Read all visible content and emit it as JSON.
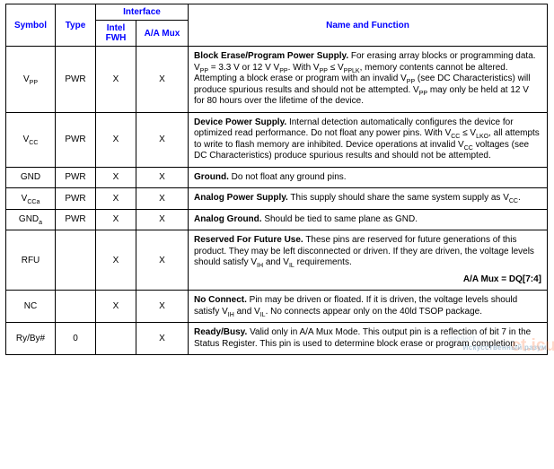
{
  "headers": {
    "symbol": "Symbol",
    "type": "Type",
    "interface": "Interface",
    "intel_fwh": "Intel FWH",
    "aa_mux": "A/A Mux",
    "name_func": "Name and Function"
  },
  "rows": [
    {
      "symbol_html": "V<sub>PP</sub>",
      "type": "PWR",
      "intel_fwh": "X",
      "aa_mux": "X",
      "desc_html": "<b>Block Erase/Program Power Supply.</b> For erasing array blocks or programming data. V<sub>PP</sub> = 3.3 V or 12 V V<sub>PP</sub>. With V<sub>PP</sub> ≤ V<sub>PPLK</sub>, memory contents cannot be altered. Attempting a block erase or program with an invalid V<sub>PP</sub> (see DC Characteristics) will produce spurious results and should not be attempted. V<sub>PP</sub> may only be held at 12 V for 80 hours over the lifetime of the device.",
      "extra_html": ""
    },
    {
      "symbol_html": "V<sub>CC</sub>",
      "type": "PWR",
      "intel_fwh": "X",
      "aa_mux": "X",
      "desc_html": "<b>Device Power Supply.</b> Internal detection automatically configures the device for optimized read performance. Do not float any power pins. With V<sub>CC</sub> ≤ V<sub>LKO</sub>, all attempts to write to flash memory are inhibited. Device operations at invalid V<sub>CC</sub> voltages (see DC Characteristics) produce spurious results and should not be attempted.",
      "extra_html": ""
    },
    {
      "symbol_html": "GND",
      "type": "PWR",
      "intel_fwh": "X",
      "aa_mux": "X",
      "desc_html": "<b>Ground.</b> Do not float any ground pins.",
      "extra_html": ""
    },
    {
      "symbol_html": "V<sub>CCa</sub>",
      "type": "PWR",
      "intel_fwh": "X",
      "aa_mux": "X",
      "desc_html": "<b>Analog Power Supply.</b> This supply should share the same system supply as V<sub>CC</sub>.",
      "extra_html": ""
    },
    {
      "symbol_html": "GND<sub>a</sub>",
      "type": "PWR",
      "intel_fwh": "X",
      "aa_mux": "X",
      "desc_html": "<b>Analog Ground.</b> Should be tied to same plane as GND.",
      "extra_html": ""
    },
    {
      "symbol_html": "RFU",
      "type": "",
      "intel_fwh": "X",
      "aa_mux": "X",
      "desc_html": "<b>Reserved For Future Use.</b> These pins are reserved for future generations of this product. They may be left disconnected or driven. If they are driven, the voltage levels should satisfy V<sub>IH</sub> and V<sub>IL</sub> requirements.",
      "extra_html": "A/A Mux = DQ[7:4]"
    },
    {
      "symbol_html": "NC",
      "type": "",
      "intel_fwh": "X",
      "aa_mux": "X",
      "desc_html": "<b>No Connect.</b> Pin may be driven or floated. If it is driven, the voltage levels should satisfy V<sub>IH</sub> and V<sub>IL</sub>. No connects appear only on the 40ld TSOP package.",
      "extra_html": ""
    },
    {
      "symbol_html": "Ry/By#",
      "type": "0",
      "intel_fwh": "",
      "aa_mux": "X",
      "desc_html": "<b>Ready/Busy.</b> Valid only in A/A Mux Mode. This output pin is a reflection of bit 7 in the Status Register. This pin is used to determine block erase or program completion.",
      "extra_html": ""
    }
  ],
  "watermark": {
    "brand": "ct.icu",
    "sub": "Искусственный разум",
    "small": "intellect"
  }
}
